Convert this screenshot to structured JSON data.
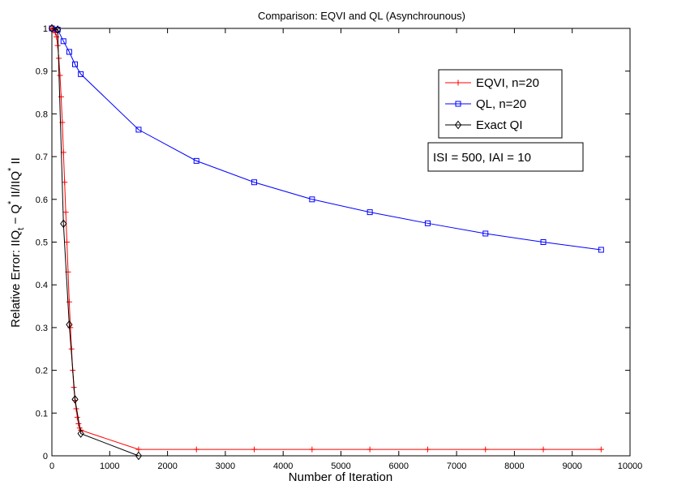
{
  "chart_data": {
    "type": "line",
    "title": "Comparison: EQVI and QL (Asynchrounous)",
    "xlabel": "Number of Iteration",
    "ylabel_parts": [
      "Relative Error: IIQ",
      "t",
      " − Q",
      "*",
      " II/IIQ",
      "*",
      " II"
    ],
    "xlim": [
      0,
      10000
    ],
    "ylim": [
      0,
      1
    ],
    "xticks": [
      0,
      1000,
      2000,
      3000,
      4000,
      5000,
      6000,
      7000,
      8000,
      9000,
      10000
    ],
    "yticks": [
      0,
      0.1,
      0.2,
      0.3,
      0.4,
      0.5,
      0.6,
      0.7,
      0.8,
      0.9,
      1
    ],
    "xtick_labels": [
      "0",
      "1000",
      "2000",
      "3000",
      "4000",
      "5000",
      "6000",
      "7000",
      "8000",
      "9000",
      "10000"
    ],
    "ytick_labels": [
      "0",
      "0.1",
      "0.2",
      "0.3",
      "0.4",
      "0.5",
      "0.6",
      "0.7",
      "0.8",
      "0.9",
      "1"
    ],
    "grid": false,
    "legend_position": "top-right",
    "annotation": "ISI = 500, IAI = 10",
    "series": [
      {
        "name": "EQVI, n=20",
        "color": "#ff0000",
        "marker": "plus",
        "x": [
          0,
          20,
          40,
          60,
          80,
          100,
          120,
          140,
          160,
          180,
          200,
          220,
          240,
          260,
          280,
          300,
          320,
          340,
          360,
          380,
          400,
          420,
          440,
          460,
          480,
          500,
          1500,
          2500,
          3500,
          4500,
          5500,
          6500,
          7500,
          8500,
          9500
        ],
        "y": [
          1,
          0.998,
          0.995,
          0.99,
          0.98,
          0.96,
          0.93,
          0.89,
          0.84,
          0.78,
          0.71,
          0.64,
          0.57,
          0.5,
          0.43,
          0.36,
          0.3,
          0.25,
          0.2,
          0.16,
          0.13,
          0.11,
          0.09,
          0.075,
          0.065,
          0.06,
          0.015,
          0.015,
          0.015,
          0.015,
          0.015,
          0.015,
          0.015,
          0.015,
          0.015
        ]
      },
      {
        "name": "QL, n=20",
        "color": "#0000ff",
        "marker": "square",
        "x": [
          0,
          100,
          200,
          300,
          400,
          500,
          1500,
          2500,
          3500,
          4500,
          5500,
          6500,
          7500,
          8500,
          9500
        ],
        "y": [
          1,
          0.997,
          0.97,
          0.945,
          0.916,
          0.893,
          0.763,
          0.69,
          0.64,
          0.6,
          0.57,
          0.544,
          0.52,
          0.5,
          0.482
        ]
      },
      {
        "name": "Exact QI",
        "color": "#000000",
        "marker": "diamond",
        "x": [
          0,
          100,
          200,
          300,
          400,
          500,
          1500
        ],
        "y": [
          1,
          0.997,
          0.543,
          0.307,
          0.132,
          0.052,
          0.0
        ]
      }
    ]
  }
}
